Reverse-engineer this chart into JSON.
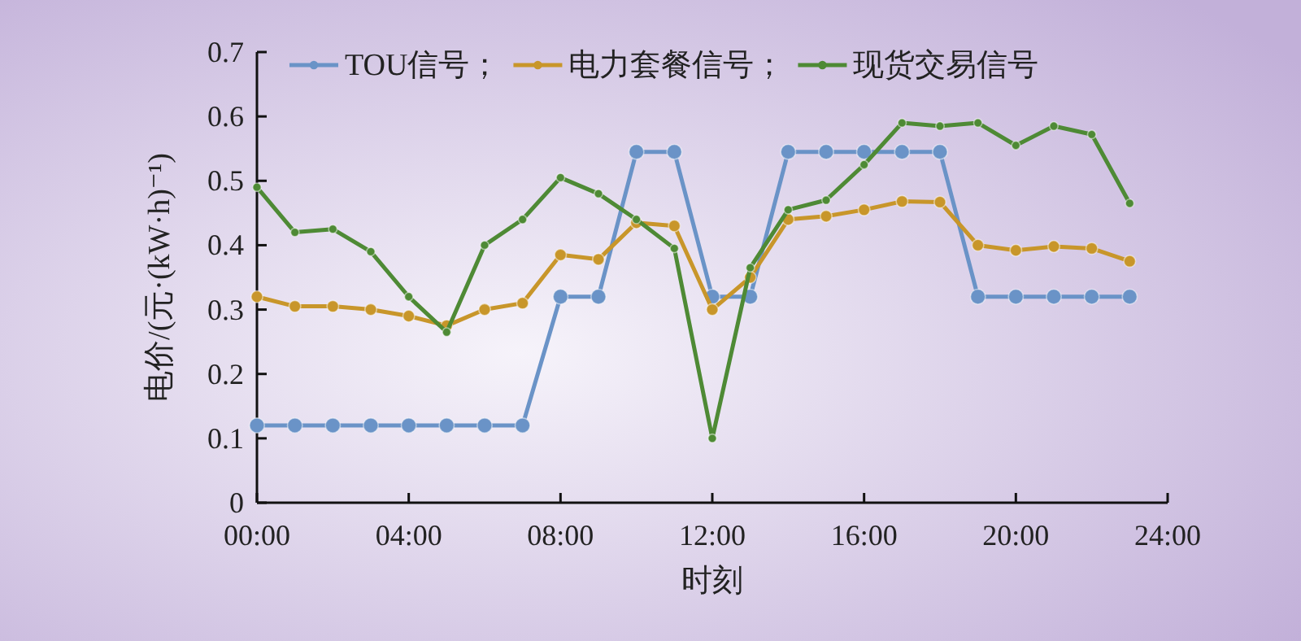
{
  "chart_data": {
    "type": "line",
    "xlabel": "时刻",
    "ylabel": "电价/(元·(kW·h)⁻¹)",
    "x": [
      0,
      1,
      2,
      3,
      4,
      5,
      6,
      7,
      8,
      9,
      10,
      11,
      12,
      13,
      14,
      15,
      16,
      17,
      18,
      19,
      20,
      21,
      22,
      23
    ],
    "xlim": [
      0,
      24
    ],
    "xticks": [
      {
        "value": 0,
        "label": "00:00"
      },
      {
        "value": 4,
        "label": "04:00"
      },
      {
        "value": 8,
        "label": "08:00"
      },
      {
        "value": 12,
        "label": "12:00"
      },
      {
        "value": 16,
        "label": "16:00"
      },
      {
        "value": 20,
        "label": "20:00"
      },
      {
        "value": 24,
        "label": "24:00"
      }
    ],
    "ylim": [
      0,
      0.7
    ],
    "yticks": [
      0,
      0.1,
      0.2,
      0.3,
      0.4,
      0.5,
      0.6,
      0.7
    ],
    "grid": false,
    "legend": "top",
    "marker": "circle",
    "line_style": "solid",
    "series": [
      {
        "name": "TOU信号；",
        "color": "#6a93c7",
        "values": [
          0.12,
          0.12,
          0.12,
          0.12,
          0.12,
          0.12,
          0.12,
          0.12,
          0.32,
          0.32,
          0.545,
          0.545,
          0.32,
          0.32,
          0.545,
          0.545,
          0.545,
          0.545,
          0.545,
          0.32,
          0.32,
          0.32,
          0.32,
          0.32
        ]
      },
      {
        "name": "电力套餐信号；",
        "color": "#c8962a",
        "values": [
          0.32,
          0.305,
          0.305,
          0.3,
          0.29,
          0.275,
          0.3,
          0.31,
          0.385,
          0.378,
          0.435,
          0.43,
          0.3,
          0.35,
          0.44,
          0.445,
          0.455,
          0.468,
          0.467,
          0.4,
          0.392,
          0.398,
          0.395,
          0.375
        ]
      },
      {
        "name": "现货交易信号",
        "color": "#4e8a35",
        "values": [
          0.49,
          0.42,
          0.425,
          0.39,
          0.32,
          0.265,
          0.4,
          0.44,
          0.505,
          0.48,
          0.44,
          0.395,
          0.1,
          0.365,
          0.455,
          0.47,
          0.525,
          0.59,
          0.585,
          0.59,
          0.555,
          0.585,
          0.572,
          0.465
        ]
      }
    ]
  }
}
